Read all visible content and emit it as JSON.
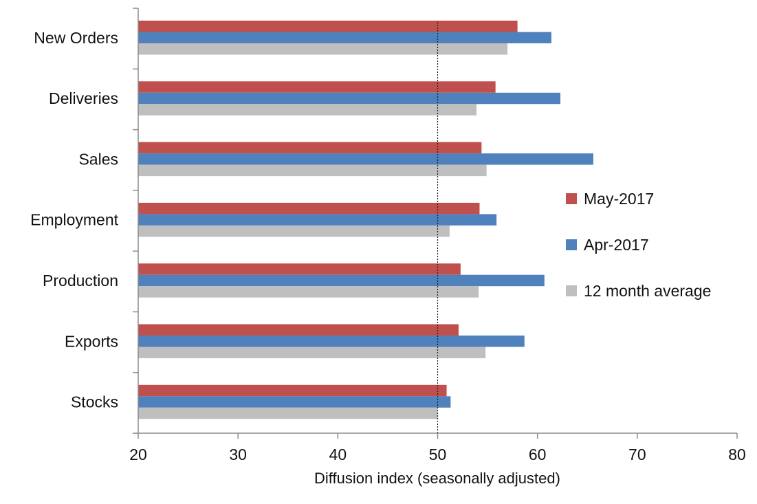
{
  "chart_data": {
    "type": "bar",
    "orientation": "horizontal",
    "categories": [
      "New Orders",
      "Deliveries",
      "Sales",
      "Employment",
      "Production",
      "Exports",
      "Stocks"
    ],
    "series": [
      {
        "name": "May-2017",
        "color": "#c0504d",
        "values": [
          58.0,
          55.8,
          54.4,
          54.2,
          52.3,
          52.1,
          50.9
        ]
      },
      {
        "name": "Apr-2017",
        "color": "#4f81bd",
        "values": [
          61.4,
          62.3,
          65.6,
          55.9,
          60.7,
          58.7,
          51.3
        ]
      },
      {
        "name": "12 month average",
        "color": "#bfbfbf",
        "values": [
          57.0,
          53.9,
          54.9,
          51.2,
          54.1,
          54.8,
          50.0
        ]
      }
    ],
    "xlabel": "Diffusion index (seasonally adjusted)",
    "xlim": [
      20,
      80
    ],
    "xticks": [
      20,
      30,
      40,
      50,
      60,
      70,
      80
    ],
    "reference_line": 50,
    "grid": false,
    "legend_position": "right"
  }
}
